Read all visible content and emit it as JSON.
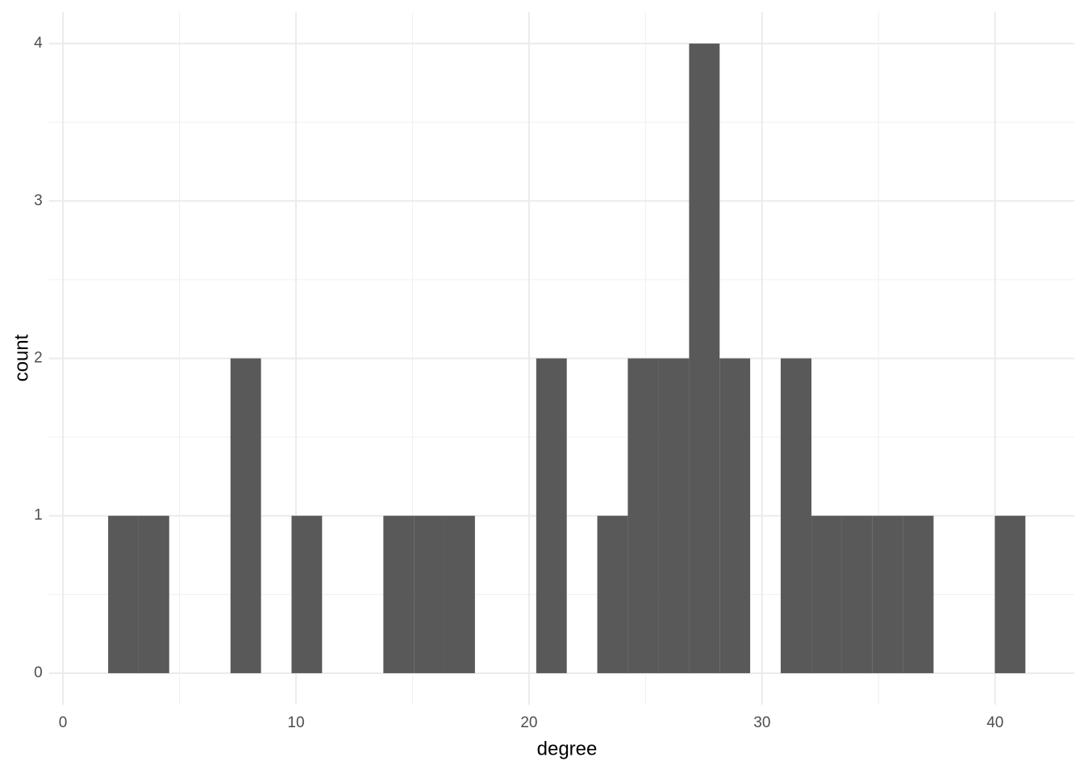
{
  "chart_data": {
    "type": "histogram",
    "x_label": "degree",
    "y_label": "count",
    "bins": [
      1.94,
      3.25,
      4.56,
      5.88,
      7.19,
      8.5,
      9.81,
      11.12,
      12.44,
      13.75,
      15.06,
      16.37,
      17.68,
      19.0,
      20.31,
      21.62,
      22.93,
      24.24,
      25.56,
      26.87,
      28.18,
      29.49,
      30.8,
      32.12,
      33.43,
      34.74,
      36.05,
      37.36,
      38.68,
      39.99,
      41.3
    ],
    "values": [
      1,
      1,
      0,
      0,
      2,
      0,
      1,
      0,
      0,
      1,
      1,
      1,
      0,
      0,
      2,
      0,
      1,
      2,
      2,
      4,
      2,
      0,
      2,
      1,
      1,
      1,
      1,
      0,
      0,
      1
    ],
    "color": "#595959",
    "xlim": [
      -0.6,
      43.4
    ],
    "xticks": [
      0,
      10,
      20,
      30,
      40
    ],
    "ylim": [
      -0.2,
      4.2
    ],
    "yticks": [
      0,
      1,
      2,
      3,
      4
    ],
    "grid": true
  }
}
